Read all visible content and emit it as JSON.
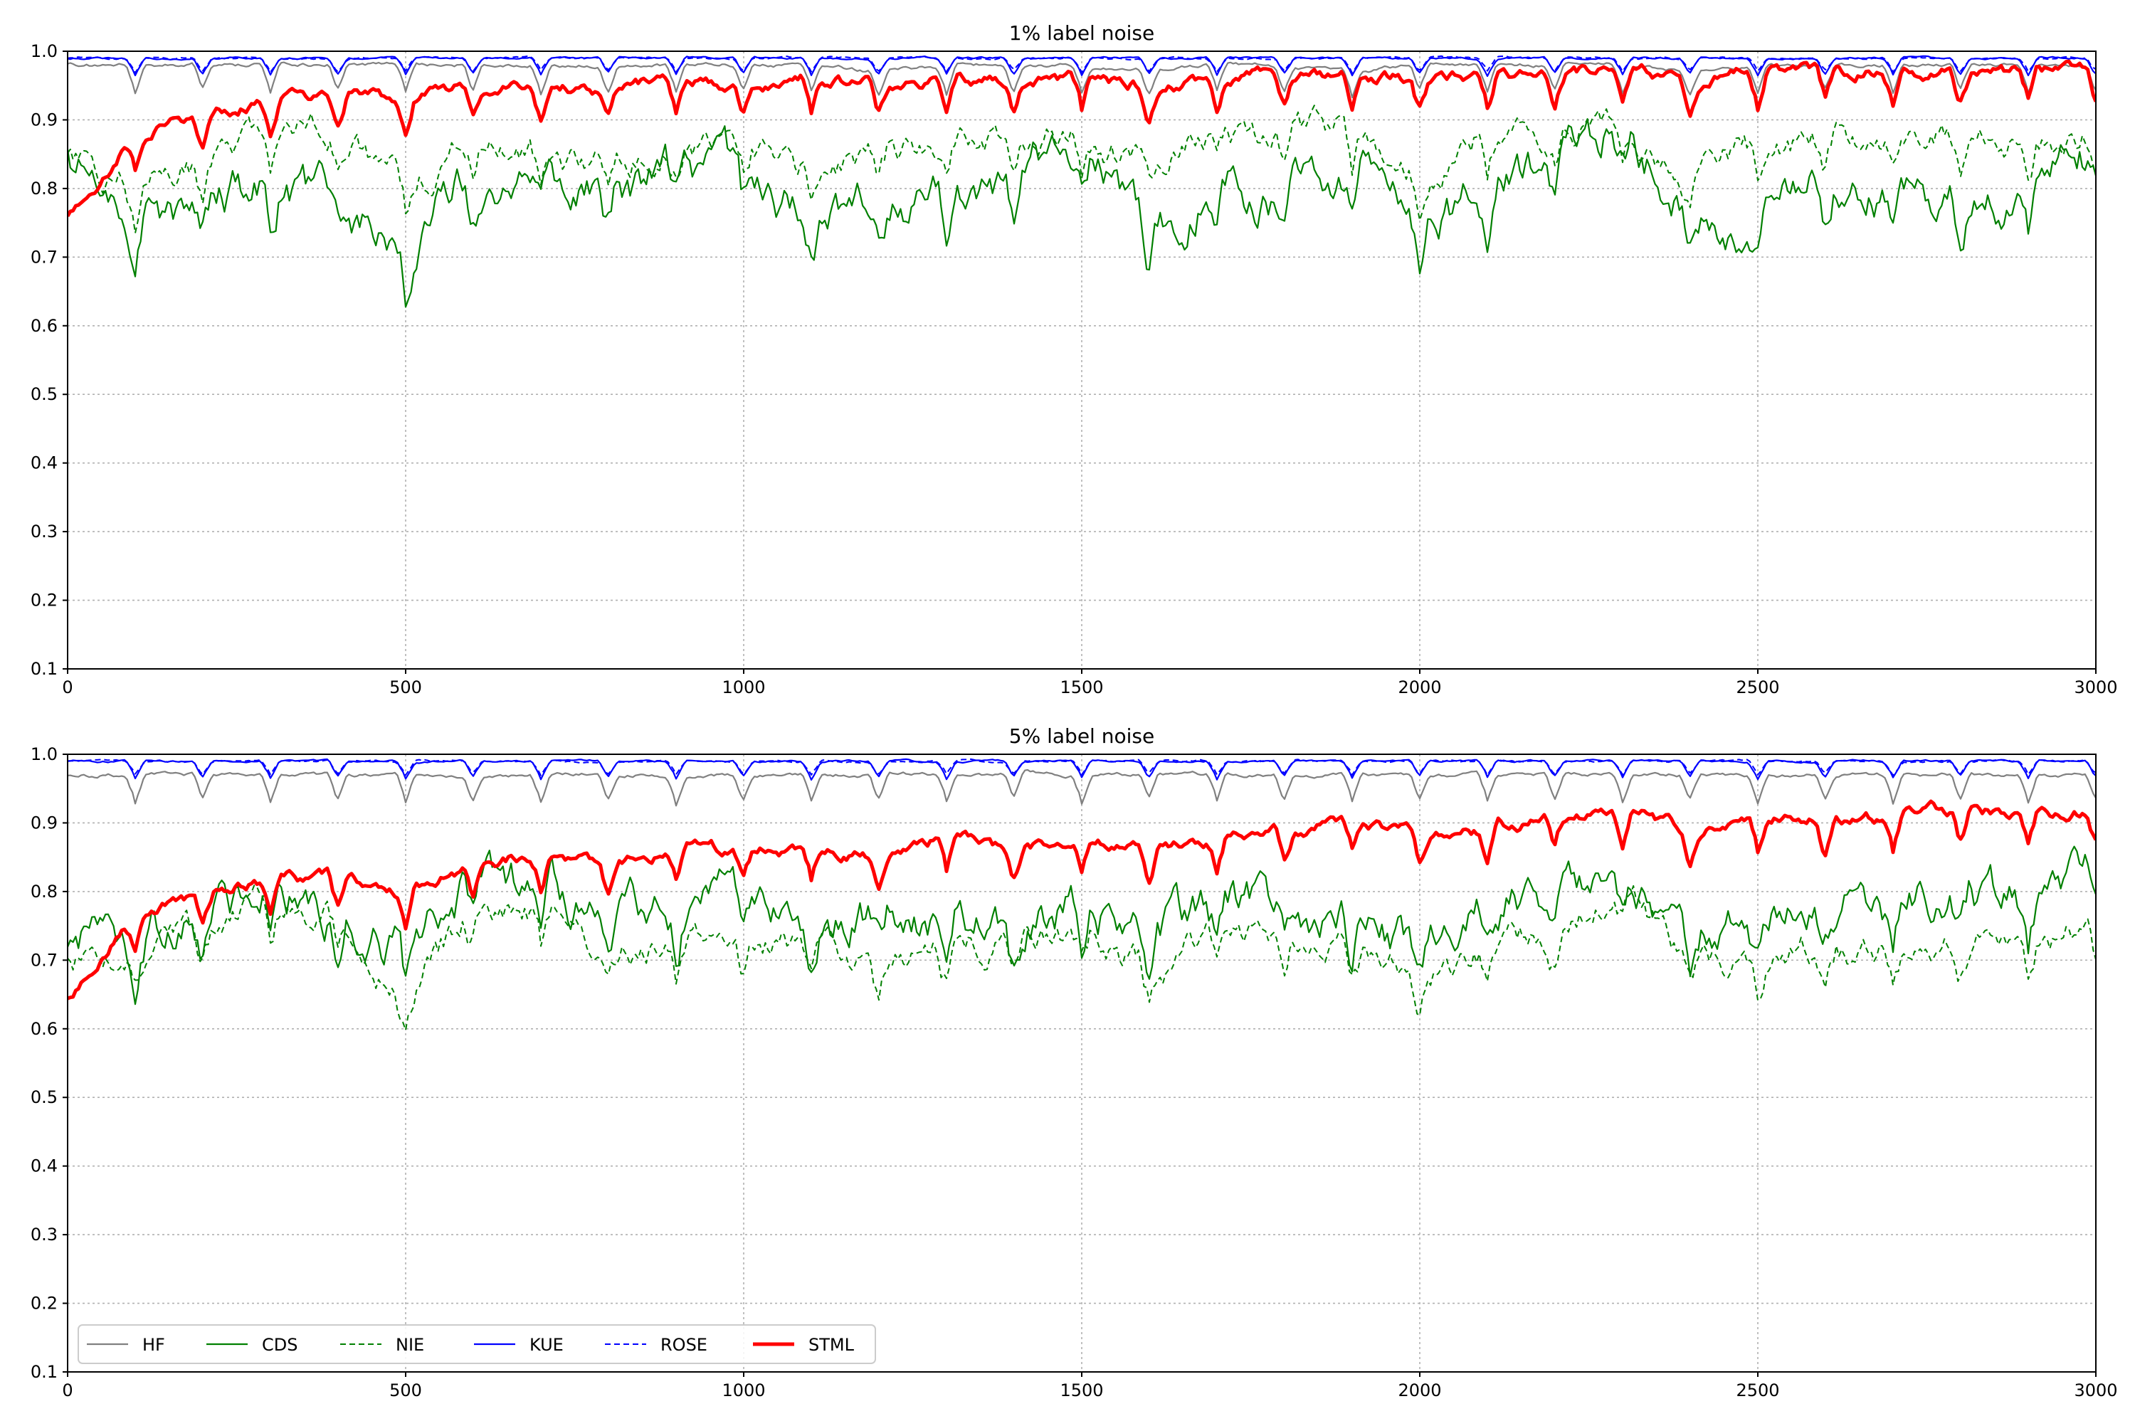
{
  "colors": {
    "HF": "#808080",
    "CDS": "#008000",
    "NIE": "#008000",
    "KUE": "#0000ff",
    "ROSE": "#0000ff",
    "STML": "#ff0000"
  },
  "legend": {
    "placement": "lower-left of bottom panel",
    "entries": [
      {
        "label": "HF",
        "style": "solid"
      },
      {
        "label": "CDS",
        "style": "solid"
      },
      {
        "label": "NIE",
        "style": "dashed"
      },
      {
        "label": "KUE",
        "style": "solid"
      },
      {
        "label": "ROSE",
        "style": "dashed"
      },
      {
        "label": "STML",
        "style": "solid-thick"
      }
    ]
  },
  "chart_data": [
    {
      "type": "line",
      "title": "1% label noise",
      "xlabel": "",
      "ylabel": "",
      "xlim": [
        0,
        3000
      ],
      "ylim": [
        0.1,
        1.0
      ],
      "xticks": [
        "0",
        "500",
        "1000",
        "1500",
        "2000",
        "2500",
        "3000"
      ],
      "yticks": [
        "0.1",
        "0.2",
        "0.3",
        "0.4",
        "0.5",
        "0.6",
        "0.7",
        "0.8",
        "0.9",
        "1.0"
      ],
      "grid": true,
      "x": [
        0,
        100,
        200,
        300,
        400,
        500,
        600,
        700,
        800,
        900,
        1000,
        1100,
        1200,
        1300,
        1400,
        1500,
        1600,
        1700,
        1800,
        1900,
        2000,
        2100,
        2200,
        2300,
        2400,
        2500,
        2600,
        2700,
        2800,
        2900,
        3000
      ],
      "series": [
        {
          "name": "HF",
          "values": [
            0.98,
            0.98,
            0.98,
            0.98,
            0.98,
            0.98,
            0.98,
            0.98,
            0.98,
            0.98,
            0.98,
            0.98,
            0.97,
            0.98,
            0.98,
            0.98,
            0.97,
            0.98,
            0.98,
            0.97,
            0.98,
            0.98,
            0.98,
            0.98,
            0.97,
            0.98,
            0.98,
            0.98,
            0.98,
            0.98,
            0.98
          ]
        },
        {
          "name": "CDS",
          "values": [
            0.85,
            0.76,
            0.78,
            0.8,
            0.78,
            0.72,
            0.82,
            0.8,
            0.78,
            0.84,
            0.82,
            0.75,
            0.78,
            0.8,
            0.82,
            0.87,
            0.72,
            0.8,
            0.78,
            0.83,
            0.74,
            0.8,
            0.86,
            0.89,
            0.75,
            0.76,
            0.8,
            0.79,
            0.8,
            0.79,
            0.85
          ]
        },
        {
          "name": "NIE",
          "values": [
            0.86,
            0.8,
            0.84,
            0.9,
            0.88,
            0.8,
            0.88,
            0.85,
            0.83,
            0.87,
            0.86,
            0.82,
            0.84,
            0.87,
            0.86,
            0.88,
            0.83,
            0.88,
            0.88,
            0.88,
            0.83,
            0.88,
            0.89,
            0.9,
            0.82,
            0.86,
            0.87,
            0.88,
            0.87,
            0.86,
            0.88
          ]
        },
        {
          "name": "KUE",
          "values": [
            0.99,
            0.99,
            0.99,
            0.99,
            0.99,
            0.99,
            0.99,
            0.99,
            0.99,
            0.99,
            0.99,
            0.99,
            0.99,
            0.99,
            0.99,
            0.99,
            0.99,
            0.99,
            0.99,
            0.99,
            0.99,
            0.99,
            0.99,
            0.99,
            0.99,
            0.99,
            0.99,
            0.99,
            0.99,
            0.99,
            0.99
          ]
        },
        {
          "name": "ROSE",
          "values": [
            0.99,
            0.99,
            0.99,
            0.99,
            0.99,
            0.99,
            0.99,
            0.99,
            0.99,
            0.99,
            0.99,
            0.99,
            0.99,
            0.99,
            0.99,
            0.99,
            0.99,
            0.99,
            0.99,
            0.99,
            0.99,
            0.99,
            0.99,
            0.99,
            0.99,
            0.99,
            0.99,
            0.99,
            0.99,
            0.99,
            0.99
          ]
        },
        {
          "name": "STML",
          "values": [
            0.76,
            0.88,
            0.91,
            0.93,
            0.94,
            0.93,
            0.95,
            0.95,
            0.94,
            0.96,
            0.95,
            0.96,
            0.95,
            0.96,
            0.96,
            0.96,
            0.95,
            0.96,
            0.97,
            0.96,
            0.96,
            0.96,
            0.97,
            0.97,
            0.96,
            0.97,
            0.97,
            0.97,
            0.97,
            0.97,
            0.97
          ]
        }
      ]
    },
    {
      "type": "line",
      "title": "5% label noise",
      "xlabel": "",
      "ylabel": "",
      "xlim": [
        0,
        3000
      ],
      "ylim": [
        0.1,
        1.0
      ],
      "xticks": [
        "0",
        "500",
        "1000",
        "1500",
        "2000",
        "2500",
        "3000"
      ],
      "yticks": [
        "0.1",
        "0.2",
        "0.3",
        "0.4",
        "0.5",
        "0.6",
        "0.7",
        "0.8",
        "0.9",
        "1.0"
      ],
      "grid": true,
      "x": [
        0,
        100,
        200,
        300,
        400,
        500,
        600,
        700,
        800,
        900,
        1000,
        1100,
        1200,
        1300,
        1400,
        1500,
        1600,
        1700,
        1800,
        1900,
        2000,
        2100,
        2200,
        2300,
        2400,
        2500,
        2600,
        2700,
        2800,
        2900,
        3000
      ],
      "series": [
        {
          "name": "HF",
          "values": [
            0.97,
            0.97,
            0.97,
            0.97,
            0.97,
            0.97,
            0.97,
            0.97,
            0.97,
            0.97,
            0.97,
            0.97,
            0.97,
            0.97,
            0.97,
            0.97,
            0.97,
            0.97,
            0.97,
            0.97,
            0.97,
            0.97,
            0.97,
            0.97,
            0.97,
            0.97,
            0.97,
            0.97,
            0.97,
            0.97,
            0.97
          ]
        },
        {
          "name": "CDS",
          "values": [
            0.74,
            0.75,
            0.74,
            0.82,
            0.75,
            0.7,
            0.82,
            0.8,
            0.76,
            0.78,
            0.8,
            0.74,
            0.76,
            0.77,
            0.74,
            0.8,
            0.72,
            0.78,
            0.78,
            0.76,
            0.72,
            0.78,
            0.8,
            0.84,
            0.74,
            0.76,
            0.78,
            0.77,
            0.79,
            0.77,
            0.82
          ]
        },
        {
          "name": "NIE",
          "values": [
            0.7,
            0.72,
            0.73,
            0.78,
            0.77,
            0.64,
            0.78,
            0.76,
            0.7,
            0.74,
            0.72,
            0.72,
            0.7,
            0.72,
            0.72,
            0.74,
            0.68,
            0.74,
            0.73,
            0.72,
            0.66,
            0.72,
            0.74,
            0.8,
            0.7,
            0.7,
            0.72,
            0.72,
            0.74,
            0.72,
            0.75
          ]
        },
        {
          "name": "KUE",
          "values": [
            0.99,
            0.99,
            0.99,
            0.99,
            0.99,
            0.99,
            0.99,
            0.99,
            0.99,
            0.99,
            0.99,
            0.99,
            0.99,
            0.99,
            0.99,
            0.99,
            0.99,
            0.99,
            0.99,
            0.99,
            0.99,
            0.99,
            0.99,
            0.99,
            0.99,
            0.99,
            0.99,
            0.99,
            0.99,
            0.99,
            0.99
          ]
        },
        {
          "name": "ROSE",
          "values": [
            0.99,
            0.99,
            0.99,
            0.99,
            0.99,
            0.99,
            0.99,
            0.99,
            0.99,
            0.99,
            0.99,
            0.99,
            0.99,
            0.99,
            0.99,
            0.99,
            0.99,
            0.99,
            0.99,
            0.99,
            0.99,
            0.99,
            0.99,
            0.99,
            0.99,
            0.99,
            0.99,
            0.99,
            0.99,
            0.99,
            0.99
          ]
        },
        {
          "name": "STML",
          "values": [
            0.64,
            0.76,
            0.8,
            0.82,
            0.82,
            0.8,
            0.84,
            0.86,
            0.84,
            0.86,
            0.86,
            0.86,
            0.85,
            0.88,
            0.86,
            0.88,
            0.86,
            0.88,
            0.89,
            0.9,
            0.88,
            0.89,
            0.91,
            0.92,
            0.89,
            0.91,
            0.9,
            0.91,
            0.92,
            0.91,
            0.92
          ]
        }
      ]
    }
  ]
}
